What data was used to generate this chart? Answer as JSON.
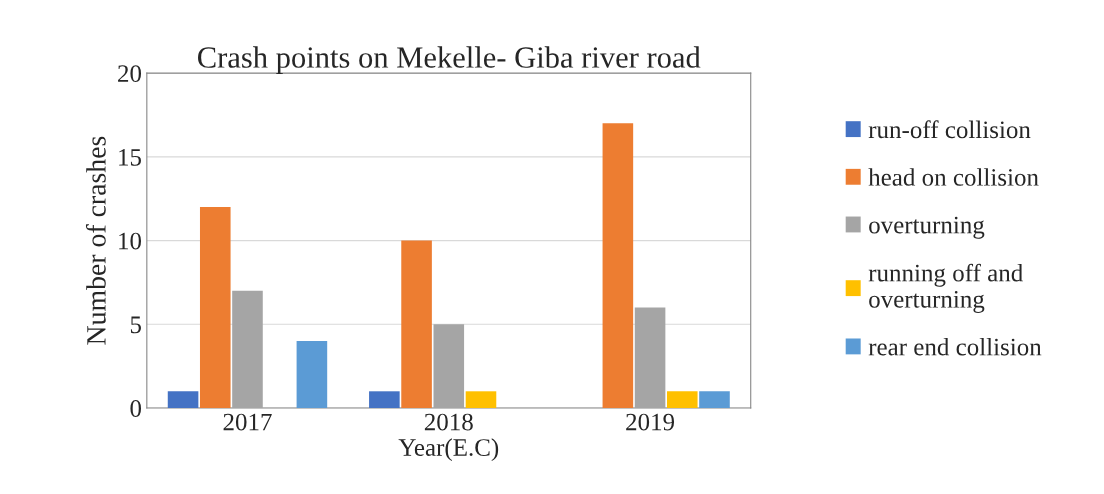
{
  "chart_data": {
    "type": "bar",
    "title": "Crash points on Mekelle- Giba river road",
    "xlabel": "Year(E.C)",
    "ylabel": "Number of crashes",
    "categories": [
      "2017",
      "2018",
      "2019"
    ],
    "series": [
      {
        "name": "run-off collision",
        "color": "#4472c4",
        "values": [
          1,
          1,
          0
        ]
      },
      {
        "name": "head on collision",
        "color": "#ed7d31",
        "values": [
          12,
          10,
          17
        ]
      },
      {
        "name": "overturning",
        "color": "#a5a5a5",
        "values": [
          7,
          5,
          6
        ]
      },
      {
        "name": "running off and\noverturning",
        "color": "#ffc000",
        "values": [
          0,
          1,
          1
        ]
      },
      {
        "name": "rear end collision",
        "color": "#5b9bd5",
        "values": [
          4,
          0,
          1
        ]
      }
    ],
    "ylim": [
      0,
      20
    ],
    "yticks": [
      0,
      5,
      10,
      15,
      20
    ],
    "grid": "y",
    "legend": "right"
  }
}
